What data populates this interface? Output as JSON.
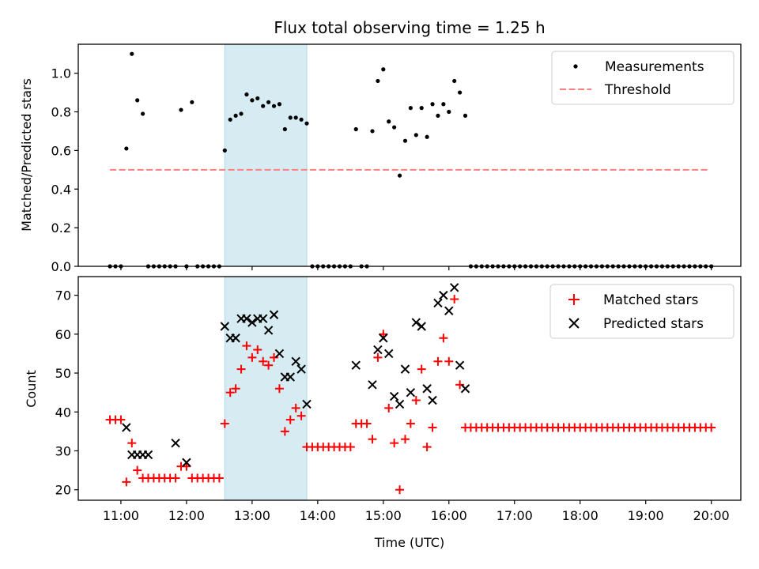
{
  "title": "Flux total observing time = 1.25 h",
  "colors": {
    "measurement": "#000000",
    "threshold": "#ff7f7f",
    "matched": "#ff0000",
    "predicted": "#000000",
    "highlight": "#add8e6"
  },
  "chart_data": [
    {
      "type": "scatter",
      "title": "Flux total observing time = 1.25 h",
      "xlabel": "",
      "ylabel": "Matched/Predicted stars",
      "ylim": [
        0,
        1.15
      ],
      "yticks": [
        "0.0",
        "0.2",
        "0.4",
        "0.6",
        "0.8",
        "1.0"
      ],
      "legend_position": "top-right",
      "highlight_span": {
        "from": "12:35",
        "to": "13:50"
      },
      "threshold": {
        "name": "Threshold",
        "y": 0.5,
        "x_from": "10:50",
        "x_to": "19:58"
      },
      "series": [
        {
          "name": "Measurements",
          "x": [
            "10:50",
            "10:55",
            "11:00",
            "11:05",
            "11:10",
            "11:15",
            "11:20",
            "11:25",
            "11:30",
            "11:35",
            "11:40",
            "11:45",
            "11:50",
            "11:55",
            "12:00",
            "12:05",
            "12:10",
            "12:15",
            "12:20",
            "12:25",
            "12:30",
            "12:35",
            "12:40",
            "12:45",
            "12:50",
            "12:55",
            "13:00",
            "13:05",
            "13:10",
            "13:15",
            "13:20",
            "13:25",
            "13:30",
            "13:35",
            "13:40",
            "13:45",
            "13:50",
            "13:55",
            "14:00",
            "14:05",
            "14:10",
            "14:15",
            "14:20",
            "14:25",
            "14:30",
            "14:35",
            "14:40",
            "14:45",
            "14:50",
            "14:55",
            "15:00",
            "15:05",
            "15:10",
            "15:15",
            "15:20",
            "15:25",
            "15:30",
            "15:35",
            "15:40",
            "15:45",
            "15:50",
            "15:55",
            "16:00",
            "16:05",
            "16:10",
            "16:15",
            "16:20",
            "16:25",
            "16:30",
            "16:35",
            "16:40",
            "16:45",
            "16:50",
            "16:55",
            "17:00",
            "17:05",
            "17:10",
            "17:15",
            "17:20",
            "17:25",
            "17:30",
            "17:35",
            "17:40",
            "17:45",
            "17:50",
            "17:55",
            "18:00",
            "18:05",
            "18:10",
            "18:15",
            "18:20",
            "18:25",
            "18:30",
            "18:35",
            "18:40",
            "18:45",
            "18:50",
            "18:55",
            "19:00",
            "19:05",
            "19:10",
            "19:15",
            "19:20",
            "19:25",
            "19:30",
            "19:35",
            "19:40",
            "19:45",
            "19:50",
            "19:55",
            "20:00"
          ],
          "y": [
            0,
            0,
            0,
            0.61,
            1.1,
            0.86,
            0.79,
            0,
            0,
            0,
            0,
            0,
            0,
            0.81,
            0,
            0.85,
            0,
            0,
            0,
            0,
            0,
            0.6,
            0.76,
            0.78,
            0.79,
            0.89,
            0.86,
            0.87,
            0.83,
            0.85,
            0.83,
            0.84,
            0.71,
            0.77,
            0.77,
            0.76,
            0.74,
            0,
            0,
            0,
            0,
            0,
            0,
            0,
            0,
            0.71,
            0,
            0,
            0.7,
            0.96,
            1.02,
            0.75,
            0.72,
            0.47,
            0.65,
            0.82,
            0.68,
            0.82,
            0.67,
            0.84,
            0.78,
            0.84,
            0.8,
            0.96,
            0.9,
            0.78,
            0,
            0,
            0,
            0,
            0,
            0,
            0,
            0,
            0,
            0,
            0,
            0,
            0,
            0,
            0,
            0,
            0,
            0,
            0,
            0,
            0,
            0,
            0,
            0,
            0,
            0,
            0,
            0,
            0,
            0,
            0,
            0,
            0,
            0,
            0,
            0,
            0,
            0,
            0,
            0,
            0,
            0,
            0,
            0,
            0
          ]
        }
      ]
    },
    {
      "type": "scatter",
      "title": "",
      "xlabel": "Time (UTC)",
      "ylabel": "Count",
      "ylim": [
        17.3,
        74.8
      ],
      "xlim": [
        "10:21",
        "20:27"
      ],
      "xticks": [
        "11:00",
        "12:00",
        "13:00",
        "14:00",
        "15:00",
        "16:00",
        "17:00",
        "18:00",
        "19:00",
        "20:00"
      ],
      "yticks": [
        "20",
        "30",
        "40",
        "50",
        "60",
        "70"
      ],
      "legend_position": "top-right",
      "highlight_span": {
        "from": "12:35",
        "to": "13:50"
      },
      "series": [
        {
          "name": "Matched stars",
          "marker": "plus",
          "x": [
            "10:50",
            "10:55",
            "11:00",
            "11:05",
            "11:10",
            "11:15",
            "11:20",
            "11:25",
            "11:30",
            "11:35",
            "11:40",
            "11:45",
            "11:50",
            "11:55",
            "12:00",
            "12:05",
            "12:10",
            "12:15",
            "12:20",
            "12:25",
            "12:30",
            "12:35",
            "12:40",
            "12:45",
            "12:50",
            "12:55",
            "13:00",
            "13:05",
            "13:10",
            "13:15",
            "13:20",
            "13:25",
            "13:30",
            "13:35",
            "13:40",
            "13:45",
            "13:50",
            "13:55",
            "14:00",
            "14:05",
            "14:10",
            "14:15",
            "14:20",
            "14:25",
            "14:30",
            "14:35",
            "14:40",
            "14:45",
            "14:50",
            "14:55",
            "15:00",
            "15:05",
            "15:10",
            "15:15",
            "15:20",
            "15:25",
            "15:30",
            "15:35",
            "15:40",
            "15:45",
            "15:50",
            "15:55",
            "16:00",
            "16:05",
            "16:10",
            "16:15",
            "16:20",
            "16:25",
            "16:30",
            "16:35",
            "16:40",
            "16:45",
            "16:50",
            "16:55",
            "17:00",
            "17:05",
            "17:10",
            "17:15",
            "17:20",
            "17:25",
            "17:30",
            "17:35",
            "17:40",
            "17:45",
            "17:50",
            "17:55",
            "18:00",
            "18:05",
            "18:10",
            "18:15",
            "18:20",
            "18:25",
            "18:30",
            "18:35",
            "18:40",
            "18:45",
            "18:50",
            "18:55",
            "19:00",
            "19:05",
            "19:10",
            "19:15",
            "19:20",
            "19:25",
            "19:30",
            "19:35",
            "19:40",
            "19:45",
            "19:50",
            "19:55",
            "20:00"
          ],
          "y": [
            38,
            38,
            38,
            22,
            32,
            25,
            23,
            23,
            23,
            23,
            23,
            23,
            23,
            26,
            26,
            23,
            23,
            23,
            23,
            23,
            23,
            37,
            45,
            46,
            51,
            57,
            54,
            56,
            53,
            52,
            54,
            46,
            35,
            38,
            41,
            39,
            31,
            31,
            31,
            31,
            31,
            31,
            31,
            31,
            31,
            37,
            37,
            37,
            33,
            54,
            60,
            41,
            32,
            20,
            33,
            37,
            43,
            51,
            31,
            36,
            53,
            59,
            53,
            69,
            47,
            36,
            36,
            36,
            36,
            36,
            36,
            36,
            36,
            36,
            36,
            36,
            36,
            36,
            36,
            36,
            36,
            36,
            36,
            36,
            36,
            36,
            36,
            36,
            36,
            36,
            36,
            36,
            36,
            36,
            36,
            36,
            36,
            36,
            36,
            36,
            36,
            36,
            36,
            36,
            36,
            36,
            36,
            36,
            36,
            36,
            36
          ]
        },
        {
          "name": "Predicted stars",
          "marker": "cross",
          "x": [
            "11:05",
            "11:10",
            "11:15",
            "11:20",
            "11:25",
            "11:50",
            "12:00",
            "12:35",
            "12:40",
            "12:45",
            "12:50",
            "12:55",
            "13:00",
            "13:05",
            "13:10",
            "13:15",
            "13:20",
            "13:25",
            "13:30",
            "13:35",
            "13:40",
            "13:45",
            "13:50",
            "14:35",
            "14:50",
            "14:55",
            "15:00",
            "15:05",
            "15:10",
            "15:15",
            "15:20",
            "15:25",
            "15:30",
            "15:35",
            "15:40",
            "15:45",
            "15:50",
            "15:55",
            "16:00",
            "16:05",
            "16:10",
            "16:15"
          ],
          "y": [
            36,
            29,
            29,
            29,
            29,
            32,
            27,
            62,
            59,
            59,
            64,
            64,
            63,
            64,
            64,
            61,
            65,
            55,
            49,
            49,
            53,
            51,
            42,
            52,
            47,
            56,
            59,
            55,
            44,
            42,
            51,
            45,
            63,
            62,
            46,
            43,
            68,
            70,
            66,
            72,
            52,
            46
          ]
        }
      ]
    }
  ]
}
